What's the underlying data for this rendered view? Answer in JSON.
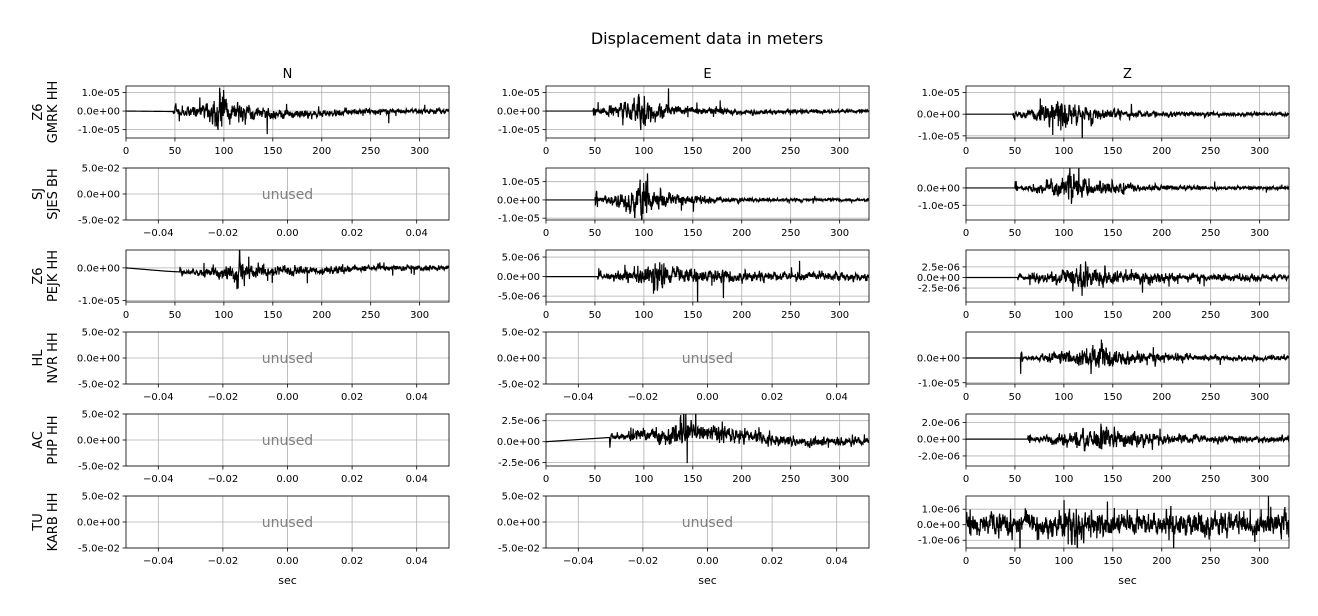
{
  "figure": {
    "suptitle": "Displacement data in meters",
    "column_titles": [
      "N",
      "E",
      "Z"
    ],
    "row_labels": [
      [
        "Z6",
        "GMRK HH"
      ],
      [
        "SJ",
        "SJES BH"
      ],
      [
        "Z6",
        "PEJK HH"
      ],
      [
        "HL",
        "NVR HH"
      ],
      [
        "AC",
        "PHP HH"
      ],
      [
        "TU",
        "KARB HH"
      ]
    ],
    "xlabel": "sec",
    "unused_label": "unused",
    "colors": {
      "trace": "#000000",
      "grid": "#b0b0b0",
      "unused_text": "#808080"
    }
  },
  "chart_data": [
    {
      "type": "line",
      "row": 0,
      "col": 0,
      "unused": false,
      "xlim": [
        0,
        330
      ],
      "ylim": [
        -1.45e-05,
        1.35e-05
      ],
      "xticks": [
        0,
        50,
        100,
        150,
        200,
        250,
        300
      ],
      "xtick_labels": [
        "0",
        "50",
        "100",
        "150",
        "200",
        "250",
        "300"
      ],
      "yticks": [
        1e-05,
        0,
        -1e-05
      ],
      "ytick_labels": [
        "1.0e-05",
        "0.0e+00",
        "-1.0e-05"
      ],
      "signal": {
        "onset": 48,
        "peak_time": 97,
        "peak_amp": 1.3e-05,
        "pre_amp": 1e-06,
        "pre_amp_level": 3e-07,
        "coda_amp": 1.5e-06,
        "decay": 45,
        "drift": [
          [
            0,
            0
          ],
          [
            100,
            -5e-07
          ],
          [
            150,
            -2e-06
          ],
          [
            200,
            -1.5e-06
          ],
          [
            250,
            0
          ],
          [
            330,
            0
          ]
        ]
      },
      "title": "N"
    },
    {
      "type": "line",
      "row": 0,
      "col": 1,
      "unused": false,
      "xlim": [
        0,
        330
      ],
      "ylim": [
        -1.45e-05,
        1.35e-05
      ],
      "xticks": [
        0,
        50,
        100,
        150,
        200,
        250,
        300
      ],
      "xtick_labels": [
        "0",
        "50",
        "100",
        "150",
        "200",
        "250",
        "300"
      ],
      "yticks": [
        1e-05,
        0,
        -1e-05
      ],
      "ytick_labels": [
        "1.0e-05",
        "0.0e+00",
        "-1.0e-05"
      ],
      "signal": {
        "onset": 48,
        "peak_time": 97,
        "peak_amp": 1.3e-05,
        "pre_amp": 9e-07,
        "pre_amp_level": 5e-07,
        "coda_amp": 1e-06,
        "decay": 40,
        "drift": [
          [
            0,
            0
          ],
          [
            150,
            0
          ],
          [
            200,
            -5e-07
          ],
          [
            330,
            0
          ]
        ]
      },
      "title": "E"
    },
    {
      "type": "line",
      "row": 0,
      "col": 2,
      "unused": false,
      "xlim": [
        0,
        330
      ],
      "ylim": [
        -1.1e-05,
        1.3e-05
      ],
      "xticks": [
        0,
        50,
        100,
        150,
        200,
        250,
        300
      ],
      "xtick_labels": [
        "0",
        "50",
        "100",
        "150",
        "200",
        "250",
        "300"
      ],
      "yticks": [
        1e-05,
        0,
        -1e-05
      ],
      "ytick_labels": [
        "1.0e-05",
        "0.0e+00",
        "-1.0e-05"
      ],
      "signal": {
        "onset": 48,
        "peak_time": 97,
        "peak_amp": 1.2e-05,
        "pre_amp": 9e-07,
        "pre_amp_level": 4e-07,
        "coda_amp": 8e-07,
        "decay": 40,
        "drift": [
          [
            0,
            0
          ],
          [
            330,
            0
          ]
        ]
      },
      "title": "Z"
    },
    {
      "type": "line",
      "row": 1,
      "col": 0,
      "unused": true,
      "xlim": [
        -0.05,
        0.05
      ],
      "ylim": [
        -0.05,
        0.05
      ],
      "xticks": [
        -0.04,
        -0.02,
        0,
        0.02,
        0.04
      ],
      "xtick_labels": [
        "−0.04",
        "−0.02",
        "0.00",
        "0.02",
        "0.04"
      ],
      "yticks": [
        0.05,
        0,
        -0.05
      ],
      "ytick_labels": [
        "5.0e-02",
        "0.0e+00",
        "-5.0e-02"
      ]
    },
    {
      "type": "line",
      "row": 1,
      "col": 1,
      "unused": false,
      "xlim": [
        0,
        330
      ],
      "ylim": [
        -1.1e-05,
        1.75e-05
      ],
      "xticks": [
        0,
        50,
        100,
        150,
        200,
        250,
        300
      ],
      "xtick_labels": [
        "0",
        "50",
        "100",
        "150",
        "200",
        "250",
        "300"
      ],
      "yticks": [
        1e-05,
        0,
        -1e-05
      ],
      "ytick_labels": [
        "1.0e-05",
        "0.0e+00",
        "-1.0e-05"
      ],
      "signal": {
        "onset": 50,
        "peak_time": 100,
        "peak_amp": 1.6e-05,
        "pre_amp": 5e-07,
        "pre_amp_level": 3e-07,
        "coda_amp": 8e-07,
        "decay": 35,
        "drift": [
          [
            0,
            0
          ],
          [
            330,
            0
          ]
        ]
      }
    },
    {
      "type": "line",
      "row": 1,
      "col": 2,
      "unused": false,
      "xlim": [
        0,
        330
      ],
      "ylim": [
        -1.85e-05,
        1.15e-05
      ],
      "xticks": [
        0,
        50,
        100,
        150,
        200,
        250,
        300
      ],
      "xtick_labels": [
        "0",
        "50",
        "100",
        "150",
        "200",
        "250",
        "300"
      ],
      "yticks": [
        0,
        -1e-05
      ],
      "ytick_labels": [
        "0.0e+00",
        "-1.0e-05"
      ],
      "signal": {
        "onset": 50,
        "peak_time": 108,
        "peak_amp": 1.4e-05,
        "pre_amp": 3e-07,
        "pre_amp_level": 4e-07,
        "coda_amp": 8e-07,
        "decay": 45,
        "drift": [
          [
            0,
            0
          ],
          [
            330,
            0
          ]
        ]
      }
    },
    {
      "type": "line",
      "row": 2,
      "col": 0,
      "unused": false,
      "xlim": [
        0,
        330
      ],
      "ylim": [
        -1.05e-05,
        5.5e-06
      ],
      "xticks": [
        0,
        50,
        100,
        150,
        200,
        250,
        300
      ],
      "xtick_labels": [
        "0",
        "50",
        "100",
        "150",
        "200",
        "250",
        "300"
      ],
      "yticks": [
        0,
        -1e-05
      ],
      "ytick_labels": [
        "0.0e+00",
        "-1.0e-05"
      ],
      "signal": {
        "onset": 55,
        "peak_time": 117,
        "peak_amp": 5.5e-06,
        "pre_amp": 3e-07,
        "pre_amp_level": 4e-07,
        "coda_amp": 8e-07,
        "decay": 50,
        "drift": [
          [
            0,
            0
          ],
          [
            40,
            -1e-06
          ],
          [
            70,
            -1.5e-06
          ],
          [
            120,
            -1.5e-06
          ],
          [
            160,
            -8e-07
          ],
          [
            200,
            -1e-06
          ],
          [
            250,
            0
          ],
          [
            330,
            0
          ]
        ]
      }
    },
    {
      "type": "line",
      "row": 2,
      "col": 1,
      "unused": false,
      "xlim": [
        0,
        330
      ],
      "ylim": [
        -6.5e-06,
        6.8e-06
      ],
      "xticks": [
        0,
        50,
        100,
        150,
        200,
        250,
        300
      ],
      "xtick_labels": [
        "0",
        "50",
        "100",
        "150",
        "200",
        "250",
        "300"
      ],
      "yticks": [
        5e-06,
        0,
        -5e-06
      ],
      "ytick_labels": [
        "5.0e-06",
        "0.0e+00",
        "-5.0e-06"
      ],
      "signal": {
        "onset": 53,
        "peak_time": 113,
        "peak_amp": 6e-06,
        "pre_amp": 3e-07,
        "pre_amp_level": 3e-07,
        "coda_amp": 1e-06,
        "decay": 55,
        "drift": [
          [
            0,
            0
          ],
          [
            330,
            0
          ]
        ]
      }
    },
    {
      "type": "line",
      "row": 2,
      "col": 2,
      "unused": false,
      "xlim": [
        0,
        330
      ],
      "ylim": [
        -5.8e-06,
        6.5e-06
      ],
      "xticks": [
        0,
        50,
        100,
        150,
        200,
        250,
        300
      ],
      "xtick_labels": [
        "0",
        "50",
        "100",
        "150",
        "200",
        "250",
        "300"
      ],
      "yticks": [
        2.5e-06,
        0,
        -2.5e-06
      ],
      "ytick_labels": [
        "2.5e-06",
        "0.0e+00",
        "-2.5e-06"
      ],
      "signal": {
        "onset": 53,
        "peak_time": 120,
        "peak_amp": 5e-06,
        "pre_amp": 3e-07,
        "pre_amp_level": 3e-07,
        "coda_amp": 8e-07,
        "decay": 50,
        "drift": [
          [
            0,
            0
          ],
          [
            330,
            0
          ]
        ]
      }
    },
    {
      "type": "line",
      "row": 3,
      "col": 0,
      "unused": true,
      "xlim": [
        -0.05,
        0.05
      ],
      "ylim": [
        -0.05,
        0.05
      ],
      "xticks": [
        -0.04,
        -0.02,
        0,
        0.02,
        0.04
      ],
      "xtick_labels": [
        "−0.04",
        "−0.02",
        "0.00",
        "0.02",
        "0.04"
      ],
      "yticks": [
        0.05,
        0,
        -0.05
      ],
      "ytick_labels": [
        "5.0e-02",
        "0.0e+00",
        "-5.0e-02"
      ]
    },
    {
      "type": "line",
      "row": 3,
      "col": 1,
      "unused": true,
      "xlim": [
        -0.05,
        0.05
      ],
      "ylim": [
        -0.05,
        0.05
      ],
      "xticks": [
        -0.04,
        -0.02,
        0,
        0.02,
        0.04
      ],
      "xtick_labels": [
        "−0.04",
        "−0.02",
        "0.00",
        "0.02",
        "0.04"
      ],
      "yticks": [
        0.05,
        0,
        -0.05
      ],
      "ytick_labels": [
        "5.0e-02",
        "0.0e+00",
        "-5.0e-02"
      ]
    },
    {
      "type": "line",
      "row": 3,
      "col": 2,
      "unused": false,
      "xlim": [
        0,
        330
      ],
      "ylim": [
        -1.05e-05,
        1.05e-05
      ],
      "xticks": [
        0,
        50,
        100,
        150,
        200,
        250,
        300
      ],
      "xtick_labels": [
        "0",
        "50",
        "100",
        "150",
        "200",
        "250",
        "300"
      ],
      "yticks": [
        0,
        -1e-05
      ],
      "ytick_labels": [
        "0.0e+00",
        "-1.0e-05"
      ],
      "signal": {
        "onset": 55,
        "peak_time": 138,
        "peak_amp": 9.5e-06,
        "pre_amp": 2e-07,
        "pre_amp_level": 4e-07,
        "coda_amp": 8e-07,
        "decay": 50,
        "drift": [
          [
            0,
            0
          ],
          [
            330,
            0
          ]
        ]
      }
    },
    {
      "type": "line",
      "row": 4,
      "col": 0,
      "unused": true,
      "xlim": [
        -0.05,
        0.05
      ],
      "ylim": [
        -0.05,
        0.05
      ],
      "xticks": [
        -0.04,
        -0.02,
        0,
        0.02,
        0.04
      ],
      "xtick_labels": [
        "−0.04",
        "−0.02",
        "0.00",
        "0.02",
        "0.04"
      ],
      "yticks": [
        0.05,
        0,
        -0.05
      ],
      "ytick_labels": [
        "5.0e-02",
        "0.0e+00",
        "-5.0e-02"
      ]
    },
    {
      "type": "line",
      "row": 4,
      "col": 1,
      "unused": false,
      "xlim": [
        0,
        330
      ],
      "ylim": [
        -2.9e-06,
        3.3e-06
      ],
      "xticks": [
        0,
        50,
        100,
        150,
        200,
        250,
        300
      ],
      "xtick_labels": [
        "0",
        "50",
        "100",
        "150",
        "200",
        "250",
        "300"
      ],
      "yticks": [
        2.5e-06,
        0,
        -2.5e-06
      ],
      "ytick_labels": [
        "2.5e-06",
        "0.0e+00",
        "-2.5e-06"
      ],
      "signal": {
        "onset": 65,
        "peak_time": 140,
        "peak_amp": 3e-06,
        "pre_amp": 2e-07,
        "pre_amp_level": 4e-07,
        "coda_amp": 4e-07,
        "decay": 70,
        "drift": [
          [
            0,
            0
          ],
          [
            65,
            5e-07
          ],
          [
            150,
            1e-06
          ],
          [
            200,
            8e-07
          ],
          [
            250,
            0
          ],
          [
            330,
            0
          ]
        ]
      }
    },
    {
      "type": "line",
      "row": 4,
      "col": 2,
      "unused": false,
      "xlim": [
        0,
        330
      ],
      "ylim": [
        -3.2e-06,
        3e-06
      ],
      "xticks": [
        0,
        50,
        100,
        150,
        200,
        250,
        300
      ],
      "xtick_labels": [
        "0",
        "50",
        "100",
        "150",
        "200",
        "250",
        "300"
      ],
      "yticks": [
        2e-06,
        0,
        -2e-06
      ],
      "ytick_labels": [
        "2.0e-06",
        "0.0e+00",
        "-2.0e-06"
      ],
      "signal": {
        "onset": 63,
        "peak_time": 140,
        "peak_amp": 2.6e-06,
        "pre_amp": 1.5e-07,
        "pre_amp_level": 4e-07,
        "coda_amp": 3e-07,
        "decay": 60,
        "drift": [
          [
            0,
            0
          ],
          [
            330,
            0
          ]
        ]
      }
    },
    {
      "type": "line",
      "row": 5,
      "col": 0,
      "unused": true,
      "xlim": [
        -0.05,
        0.05
      ],
      "ylim": [
        -0.05,
        0.05
      ],
      "xticks": [
        -0.04,
        -0.02,
        0,
        0.02,
        0.04
      ],
      "xtick_labels": [
        "−0.04",
        "−0.02",
        "0.00",
        "0.02",
        "0.04"
      ],
      "yticks": [
        0.05,
        0,
        -0.05
      ],
      "ytick_labels": [
        "5.0e-02",
        "0.0e+00",
        "-5.0e-02"
      ]
    },
    {
      "type": "line",
      "row": 5,
      "col": 1,
      "unused": true,
      "xlim": [
        -0.05,
        0.05
      ],
      "ylim": [
        -0.05,
        0.05
      ],
      "xticks": [
        -0.04,
        -0.02,
        0,
        0.02,
        0.04
      ],
      "xtick_labels": [
        "−0.04",
        "−0.02",
        "0.00",
        "0.02",
        "0.04"
      ],
      "yticks": [
        0.05,
        0,
        -0.05
      ],
      "ytick_labels": [
        "5.0e-02",
        "0.0e+00",
        "-5.0e-02"
      ]
    },
    {
      "type": "line",
      "row": 5,
      "col": 2,
      "unused": false,
      "xlim": [
        0,
        330
      ],
      "ylim": [
        -1.5e-06,
        1.85e-06
      ],
      "xticks": [
        0,
        50,
        100,
        150,
        200,
        250,
        300
      ],
      "xtick_labels": [
        "0",
        "50",
        "100",
        "150",
        "200",
        "250",
        "300"
      ],
      "yticks": [
        1e-06,
        0,
        -1e-06
      ],
      "ytick_labels": [
        "1.0e-06",
        "0.0e+00",
        "-1.0e-06"
      ],
      "signal": {
        "onset": 0,
        "peak_time": 110,
        "peak_amp": 1.6e-06,
        "pre_amp": 8e-07,
        "pre_amp_level": 9e-07,
        "coda_amp": 8e-07,
        "decay": 400,
        "drift": [
          [
            0,
            0
          ],
          [
            330,
            0
          ]
        ]
      }
    }
  ]
}
